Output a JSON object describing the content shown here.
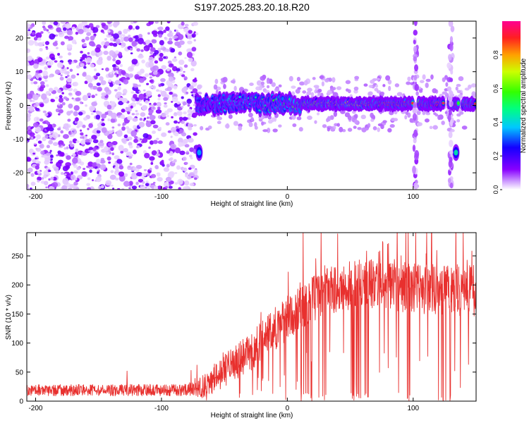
{
  "title": "S197.2025.283.20.18.R20",
  "colors": {
    "snr_line": "#e8302e",
    "axis": "#000000",
    "background": "#ffffff"
  },
  "chart_data": [
    {
      "type": "heatmap",
      "name": "spectrogram",
      "xlabel": "Height of straight line (km)",
      "ylabel": "Frequency (Hz)",
      "xlim": [
        -207,
        150
      ],
      "ylim": [
        -25,
        25
      ],
      "xticks": [
        -200,
        -100,
        0,
        100
      ],
      "yticks": [
        -20,
        -10,
        0,
        10,
        20
      ],
      "xtick_labels": [
        "-200",
        "-100",
        "0",
        "100"
      ],
      "ytick_labels": [
        "-20",
        "-10",
        "0",
        "10",
        "20"
      ],
      "colorbar": {
        "label": "Normalized spectral amplitude",
        "range": [
          0,
          1
        ],
        "ticks": [
          0.0,
          0.2,
          0.4,
          0.6,
          0.8
        ],
        "tick_labels": [
          "0.0",
          "0.2",
          "0.4",
          "0.6",
          "0.8"
        ],
        "colormap": "rainbow (white-violet-blue-cyan-green-yellow-red-magenta)"
      },
      "features": [
        {
          "kind": "noise",
          "x_range": [
            -207,
            -72
          ],
          "f_range": [
            -25,
            25
          ],
          "amplitude": 0.15
        },
        {
          "kind": "ridge",
          "x_range": [
            -72,
            150
          ],
          "f_center": 0.5,
          "amplitude_max": 0.85
        },
        {
          "kind": "blob",
          "x": -70,
          "f": -14,
          "amplitude": 0.35
        },
        {
          "kind": "blob",
          "x": 134,
          "f": -14,
          "amplitude": 0.45
        },
        {
          "kind": "stripe",
          "x": 102,
          "f_range": [
            -25,
            25
          ],
          "amplitude": 0.1
        },
        {
          "kind": "stripe",
          "x": 130,
          "f_range": [
            -25,
            25
          ],
          "amplitude": 0.1
        }
      ]
    },
    {
      "type": "line",
      "name": "snr",
      "xlabel": "Height of straight line (km)",
      "ylabel": "SNR (10 * v/v)",
      "xlim": [
        -207,
        150
      ],
      "ylim": [
        0,
        290
      ],
      "xticks": [
        -200,
        -100,
        0,
        100
      ],
      "yticks": [
        0,
        50,
        100,
        150,
        200,
        250
      ],
      "xtick_labels": [
        "-200",
        "-100",
        "0",
        "100"
      ],
      "ytick_labels": [
        "0",
        "50",
        "100",
        "150",
        "200",
        "250"
      ],
      "trend": [
        [
          -207,
          18
        ],
        [
          -150,
          18
        ],
        [
          -80,
          18
        ],
        [
          -65,
          25
        ],
        [
          -50,
          50
        ],
        [
          -30,
          80
        ],
        [
          -10,
          120
        ],
        [
          10,
          160
        ],
        [
          30,
          185
        ],
        [
          60,
          200
        ],
        [
          100,
          190
        ],
        [
          150,
          185
        ]
      ],
      "noise_amplitude": [
        [
          -207,
          10
        ],
        [
          -80,
          10
        ],
        [
          -60,
          25
        ],
        [
          0,
          40
        ],
        [
          150,
          45
        ]
      ],
      "dropouts": [
        {
          "x_range": [
            10,
            35
          ],
          "min": 0
        },
        {
          "x_range": [
            50,
            65
          ],
          "min": 0
        },
        {
          "x_range": [
            92,
            100
          ],
          "min": 0
        },
        {
          "x_range": [
            118,
            130
          ],
          "min": 0
        }
      ]
    }
  ]
}
